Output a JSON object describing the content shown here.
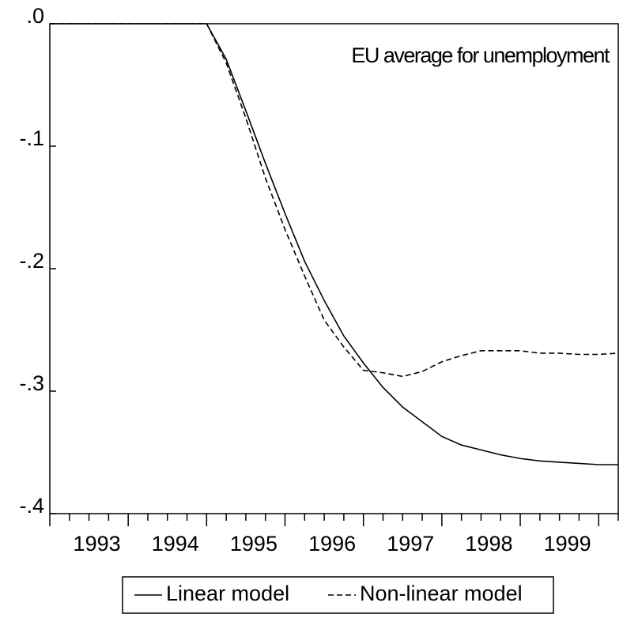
{
  "chart_data": {
    "type": "line",
    "annotation": "EU average for unemployment",
    "categories": [
      null,
      null,
      "1993",
      null,
      null,
      null,
      "1994",
      null,
      null,
      null,
      "1995",
      null,
      null,
      null,
      "1996",
      null,
      null,
      null,
      "1997",
      null,
      null,
      null,
      "1998",
      null,
      null,
      null,
      "1999",
      null,
      null,
      null
    ],
    "series": [
      {
        "name": "Linear model",
        "color": "#000000",
        "dashed": false,
        "values": [
          0,
          0,
          0,
          0,
          0,
          0,
          0,
          0,
          0,
          -0.029,
          -0.071,
          -0.114,
          -0.155,
          -0.194,
          -0.226,
          -0.255,
          -0.277,
          -0.297,
          -0.313,
          -0.325,
          -0.337,
          -0.344,
          -0.348,
          -0.352,
          -0.355,
          -0.357,
          -0.358,
          -0.359,
          -0.36,
          -0.36
        ]
      },
      {
        "name": "Non-linear model",
        "color": "#000000",
        "dashed": true,
        "values": [
          0,
          0,
          0,
          0,
          0,
          0,
          0,
          0,
          0,
          -0.032,
          -0.077,
          -0.126,
          -0.168,
          -0.206,
          -0.242,
          -0.264,
          -0.283,
          -0.285,
          -0.288,
          -0.284,
          -0.276,
          -0.271,
          -0.267,
          -0.267,
          -0.267,
          -0.269,
          -0.269,
          -0.27,
          -0.27,
          -0.269
        ]
      }
    ],
    "ylim": [
      -0.4,
      0
    ],
    "yticks": [
      {
        "value": 0,
        "label": ".0"
      },
      {
        "value": -0.1,
        "label": "-.1"
      },
      {
        "value": -0.2,
        "label": "-.2"
      },
      {
        "value": -0.3,
        "label": "-.3"
      },
      {
        "value": -0.4,
        "label": "-.4"
      }
    ],
    "grid": false
  }
}
